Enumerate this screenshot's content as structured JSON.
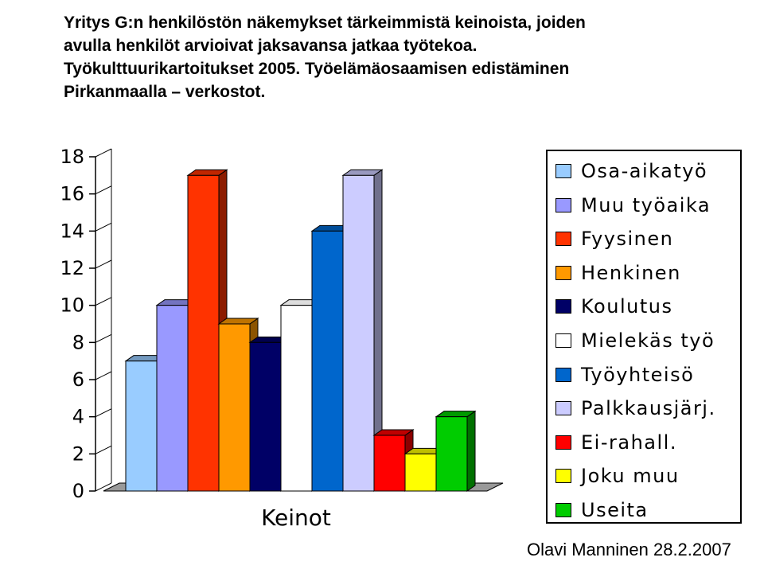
{
  "title_lines": [
    "Yritys G:n henkilöstön näkemykset tärkeimmistä keinoista, joiden",
    "avulla henkilöt arvioivat jaksavansa jatkaa työtekoa.",
    "Työkulttuurikartoitukset 2005. Työelämäosaamisen edistäminen",
    "Pirkanmaalla – verkostot."
  ],
  "footer": "Olavi Manninen 28.2.2007",
  "chart_data": {
    "type": "bar",
    "style": "3d-column",
    "xlabel": "Keinot",
    "ylabel": "",
    "ylim": [
      0,
      18
    ],
    "yticks": [
      "0",
      "2",
      "4",
      "6",
      "8",
      "10",
      "12",
      "14",
      "16",
      "18"
    ],
    "grid": false,
    "legend_position": "right",
    "series": [
      {
        "name": "Osa-aikatyö",
        "value": 7,
        "color": "#99ccff"
      },
      {
        "name": "Muu työaika",
        "value": 10,
        "color": "#9999ff"
      },
      {
        "name": "Fyysinen",
        "value": 17,
        "color": "#ff3300"
      },
      {
        "name": "Henkinen",
        "value": 9,
        "color": "#ff9900"
      },
      {
        "name": "Koulutus",
        "value": 8,
        "color": "#000066"
      },
      {
        "name": "Mielekäs työ",
        "value": 10,
        "color": "#ffffff"
      },
      {
        "name": "Työyhteisö",
        "value": 14,
        "color": "#0066cc"
      },
      {
        "name": "Palkkausjärj.",
        "value": 17,
        "color": "#ccccff"
      },
      {
        "name": "Ei-rahall.",
        "value": 3,
        "color": "#ff0000"
      },
      {
        "name": "Joku muu",
        "value": 2,
        "color": "#ffff00"
      },
      {
        "name": "Useita",
        "value": 4,
        "color": "#00cc00"
      }
    ]
  }
}
